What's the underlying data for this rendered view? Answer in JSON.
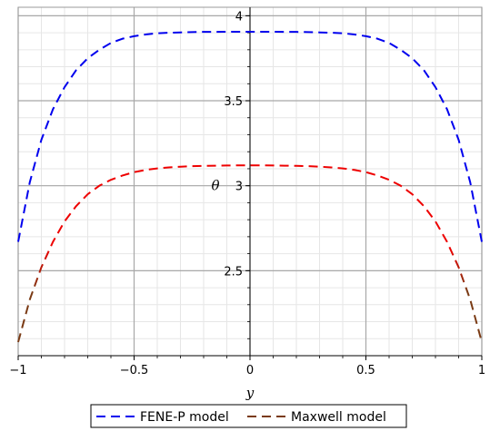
{
  "chart_data": {
    "type": "line",
    "xlabel": "y",
    "ylabel": "θ",
    "xlim": [
      -1,
      1
    ],
    "ylim": [
      2.0,
      4.05
    ],
    "x_ticks": [
      -1,
      -0.5,
      0,
      0.5,
      1
    ],
    "x_tick_labels": [
      "−1",
      "−0.5",
      "0",
      "0.5",
      "1"
    ],
    "y_ticks": [
      2.5,
      3,
      3.5,
      4
    ],
    "y_tick_labels": [
      "2.5",
      "3",
      "3.5",
      "4"
    ],
    "grid": true,
    "legend_position": "bottom",
    "series": [
      {
        "name": "FENE-P model",
        "color": "#0000ee",
        "dash": "dashed",
        "x": [
          -1,
          -0.95,
          -0.9,
          -0.85,
          -0.8,
          -0.75,
          -0.7,
          -0.65,
          -0.6,
          -0.55,
          -0.5,
          -0.45,
          -0.4,
          -0.35,
          -0.3,
          -0.25,
          -0.2,
          -0.15,
          -0.1,
          -0.05,
          0,
          0.05,
          0.1,
          0.15,
          0.2,
          0.25,
          0.3,
          0.35,
          0.4,
          0.45,
          0.5,
          0.55,
          0.6,
          0.65,
          0.7,
          0.75,
          0.8,
          0.85,
          0.9,
          0.95,
          1
        ],
        "y": [
          2.67,
          3.02,
          3.27,
          3.45,
          3.58,
          3.68,
          3.75,
          3.8,
          3.84,
          3.865,
          3.88,
          3.89,
          3.897,
          3.9,
          3.902,
          3.904,
          3.905,
          3.905,
          3.906,
          3.906,
          3.906,
          3.906,
          3.906,
          3.905,
          3.905,
          3.904,
          3.902,
          3.9,
          3.897,
          3.89,
          3.88,
          3.865,
          3.84,
          3.8,
          3.75,
          3.68,
          3.58,
          3.45,
          3.27,
          3.02,
          2.67
        ]
      },
      {
        "name": "Maxwell model",
        "color": "#ee0000",
        "end_color": "#7a3a14",
        "dash": "dashed",
        "x": [
          -1,
          -0.95,
          -0.9,
          -0.85,
          -0.8,
          -0.75,
          -0.7,
          -0.65,
          -0.6,
          -0.55,
          -0.5,
          -0.45,
          -0.4,
          -0.35,
          -0.3,
          -0.25,
          -0.2,
          -0.15,
          -0.1,
          -0.05,
          0,
          0.05,
          0.1,
          0.15,
          0.2,
          0.25,
          0.3,
          0.35,
          0.4,
          0.45,
          0.5,
          0.55,
          0.6,
          0.65,
          0.7,
          0.75,
          0.8,
          0.85,
          0.9,
          0.95,
          1
        ],
        "y": [
          2.08,
          2.33,
          2.52,
          2.67,
          2.79,
          2.88,
          2.95,
          3.0,
          3.035,
          3.06,
          3.08,
          3.093,
          3.102,
          3.108,
          3.112,
          3.115,
          3.117,
          3.118,
          3.119,
          3.12,
          3.12,
          3.12,
          3.119,
          3.118,
          3.117,
          3.115,
          3.112,
          3.108,
          3.102,
          3.093,
          3.08,
          3.06,
          3.035,
          3.0,
          2.95,
          2.88,
          2.79,
          2.67,
          2.52,
          2.33,
          2.08
        ]
      }
    ]
  }
}
